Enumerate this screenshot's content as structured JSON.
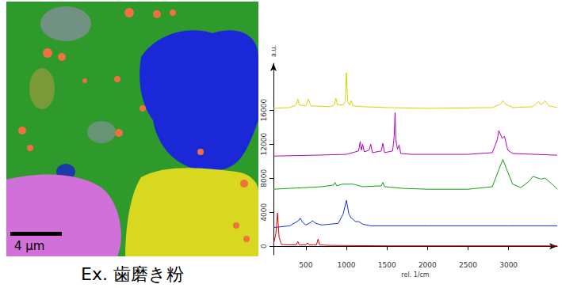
{
  "chart_data": {
    "type": "line",
    "x_label": "rel. 1/cm",
    "y_label": "a.u.",
    "xlim": [
      100,
      3600
    ],
    "xticks": [
      500,
      1000,
      1500,
      2000,
      2500,
      3000
    ],
    "ylim": [
      -1000,
      21500
    ],
    "yticks": [
      0,
      4000,
      8000,
      12000,
      16000
    ],
    "grid": false,
    "series": [
      {
        "color": "#d4d400",
        "x": [
          100,
          300,
          380,
          400,
          420,
          500,
          530,
          560,
          800,
          850,
          870,
          890,
          960,
          985,
          1000,
          1015,
          1040,
          1060,
          1080,
          1200,
          1500,
          2000,
          2800,
          2900,
          2930,
          2960,
          3050,
          3300,
          3370,
          3400,
          3450,
          3500,
          3600
        ],
        "values": [
          16200,
          16300,
          16600,
          17300,
          16600,
          16500,
          17300,
          16500,
          16400,
          16600,
          17400,
          16600,
          16600,
          17000,
          20400,
          17000,
          16600,
          17100,
          16500,
          16400,
          16300,
          16200,
          16300,
          16700,
          17100,
          16700,
          16300,
          16400,
          17000,
          16600,
          17100,
          16500,
          16300
        ]
      },
      {
        "color": "#b000c0",
        "x": [
          100,
          600,
          1000,
          1150,
          1170,
          1185,
          1200,
          1220,
          1280,
          1300,
          1320,
          1430,
          1450,
          1470,
          1570,
          1590,
          1600,
          1610,
          1630,
          1650,
          1670,
          1800,
          2500,
          2800,
          2860,
          2880,
          2920,
          2950,
          2990,
          3050,
          3600
        ],
        "values": [
          10600,
          10700,
          10800,
          11200,
          12300,
          11300,
          12000,
          11100,
          11300,
          12000,
          11000,
          11200,
          12100,
          11000,
          11200,
          13000,
          15700,
          12500,
          11400,
          11900,
          10900,
          10800,
          10800,
          11000,
          12500,
          13600,
          12700,
          12900,
          11300,
          10900,
          10700
        ]
      },
      {
        "color": "#10a010",
        "x": [
          100,
          300,
          500,
          700,
          840,
          860,
          880,
          950,
          1080,
          1200,
          1430,
          1450,
          1470,
          1700,
          2000,
          2500,
          2800,
          2880,
          2930,
          2970,
          3050,
          3150,
          3250,
          3300,
          3400,
          3450,
          3550,
          3600
        ],
        "values": [
          6700,
          6800,
          6900,
          7000,
          7200,
          7500,
          7100,
          7300,
          7300,
          7000,
          7100,
          7500,
          7000,
          6800,
          6700,
          6700,
          7000,
          9000,
          10200,
          9200,
          7300,
          6900,
          7600,
          8200,
          7900,
          8000,
          7200,
          6700
        ]
      },
      {
        "color": "#1030e0",
        "x": [
          100,
          300,
          410,
          430,
          460,
          500,
          560,
          580,
          620,
          700,
          900,
          960,
          1000,
          1030,
          1060,
          1080,
          1110,
          1150,
          1200,
          1300,
          2000,
          3000,
          3600
        ],
        "values": [
          2200,
          2400,
          3000,
          3300,
          2800,
          2500,
          2800,
          3000,
          2700,
          2500,
          2700,
          3800,
          5400,
          3800,
          3300,
          3200,
          2900,
          2900,
          2600,
          2400,
          2400,
          2400,
          2400
        ]
      },
      {
        "color": "#e00000",
        "x": [
          100,
          130,
          150,
          170,
          200,
          380,
          400,
          420,
          500,
          520,
          540,
          630,
          650,
          670,
          800,
          1500,
          2500,
          3600
        ],
        "values": [
          200,
          1500,
          3900,
          1000,
          200,
          150,
          560,
          150,
          150,
          400,
          150,
          150,
          840,
          150,
          100,
          50,
          50,
          50
        ]
      }
    ]
  },
  "image": {
    "scale_bar": "4 μm",
    "caption": "Ex. 歯磨き粉"
  }
}
